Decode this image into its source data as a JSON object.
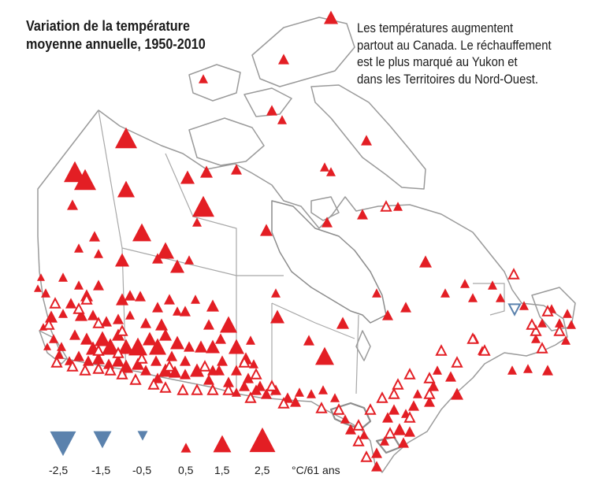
{
  "title": {
    "line1": "Variation de la température",
    "line2": "moyenne annuelle, 1950-2010"
  },
  "description": {
    "line1": "Les températures augmentent",
    "line2": "partout au Canada. Le réchauffement",
    "line3": "est le plus marqué au Yukon et",
    "line4": "dans les Territoires du Nord-Ouest."
  },
  "colors": {
    "warming": "#e31e24",
    "cooling": "#5b82ad",
    "land_outline": "#9a9a9a",
    "water": "#8c8c8c"
  },
  "legend": {
    "items": [
      {
        "value": "-2,5",
        "direction": "down",
        "magnitude": 2.5
      },
      {
        "value": "-1,5",
        "direction": "down",
        "magnitude": 1.5
      },
      {
        "value": "-0,5",
        "direction": "down",
        "magnitude": 0.5
      },
      {
        "value": "0,5",
        "direction": "up",
        "magnitude": 0.5
      },
      {
        "value": "1,5",
        "direction": "up",
        "magnitude": 1.5
      },
      {
        "value": "2,5",
        "direction": "up",
        "magnitude": 2.5
      }
    ],
    "unit": "°C/61 ans"
  },
  "marker_icons": {
    "up_filled": "red-up-triangle-icon",
    "up_outline": "red-outline-up-triangle-icon",
    "down": "blue-down-triangle-icon"
  }
}
